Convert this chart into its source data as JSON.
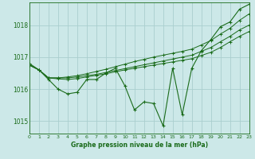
{
  "background_color": "#cce8e8",
  "grid_color": "#aacece",
  "line_color": "#1a6b1a",
  "title": "Graphe pression niveau de la mer (hPa)",
  "ylim": [
    1014.6,
    1018.7
  ],
  "xlim": [
    0,
    23
  ],
  "yticks": [
    1015,
    1016,
    1017,
    1018
  ],
  "xticks": [
    0,
    1,
    2,
    3,
    4,
    5,
    6,
    7,
    8,
    9,
    10,
    11,
    12,
    13,
    14,
    15,
    16,
    17,
    18,
    19,
    20,
    21,
    22,
    23
  ],
  "series": [
    {
      "x": [
        0,
        1,
        2,
        3,
        4,
        5,
        6,
        7,
        8,
        9,
        10,
        11,
        12,
        13,
        14,
        15,
        16,
        17,
        18,
        19,
        20,
        21,
        22,
        23
      ],
      "y": [
        1016.8,
        1016.6,
        1016.3,
        1016.0,
        1015.85,
        1015.9,
        1016.3,
        1016.3,
        1016.5,
        1016.65,
        1016.1,
        1015.35,
        1015.6,
        1015.55,
        1014.85,
        1016.65,
        1015.2,
        1016.65,
        1017.2,
        1017.55,
        1017.95,
        1018.1,
        1018.5,
        1018.65
      ]
    },
    {
      "x": [
        0,
        1,
        2,
        3,
        4,
        5,
        6,
        7,
        8,
        9,
        10,
        11,
        12,
        13,
        14,
        15,
        16,
        17,
        18,
        19,
        20,
        21,
        22,
        23
      ],
      "y": [
        1016.75,
        1016.6,
        1016.35,
        1016.35,
        1016.38,
        1016.42,
        1016.48,
        1016.55,
        1016.62,
        1016.7,
        1016.78,
        1016.86,
        1016.93,
        1017.0,
        1017.06,
        1017.12,
        1017.18,
        1017.25,
        1017.38,
        1017.52,
        1017.72,
        1017.9,
        1018.15,
        1018.35
      ]
    },
    {
      "x": [
        0,
        1,
        2,
        3,
        4,
        5,
        6,
        7,
        8,
        9,
        10,
        11,
        12,
        13,
        14,
        15,
        16,
        17,
        18,
        19,
        20,
        21,
        22,
        23
      ],
      "y": [
        1016.75,
        1016.6,
        1016.35,
        1016.35,
        1016.35,
        1016.38,
        1016.42,
        1016.46,
        1016.52,
        1016.58,
        1016.64,
        1016.7,
        1016.76,
        1016.82,
        1016.88,
        1016.94,
        1017.0,
        1017.06,
        1017.18,
        1017.3,
        1017.48,
        1017.65,
        1017.85,
        1018.0
      ]
    },
    {
      "x": [
        0,
        1,
        2,
        3,
        4,
        5,
        6,
        7,
        8,
        9,
        10,
        11,
        12,
        13,
        14,
        15,
        16,
        17,
        18,
        19,
        20,
        21,
        22,
        23
      ],
      "y": [
        1016.75,
        1016.6,
        1016.35,
        1016.32,
        1016.3,
        1016.33,
        1016.38,
        1016.43,
        1016.48,
        1016.54,
        1016.6,
        1016.65,
        1016.7,
        1016.75,
        1016.8,
        1016.85,
        1016.9,
        1016.95,
        1017.05,
        1017.15,
        1017.3,
        1017.48,
        1017.65,
        1017.8
      ]
    }
  ]
}
